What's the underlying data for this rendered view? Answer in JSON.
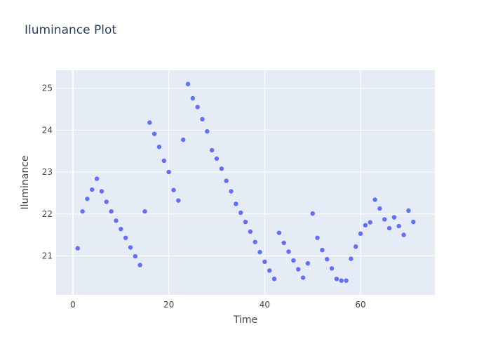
{
  "chart_data": {
    "type": "scatter",
    "title": "Iluminance Plot",
    "xlabel": "Time",
    "ylabel": "Iluminance",
    "xlim": [
      -3.5,
      75.5
    ],
    "ylim": [
      20.07,
      25.43
    ],
    "xticks": [
      0,
      20,
      40,
      60
    ],
    "yticks": [
      21,
      22,
      23,
      24,
      25
    ],
    "grid": true,
    "marker_color": "#636efa",
    "plot_background": "#e5ecf6",
    "x": [
      1,
      2,
      3,
      4,
      5,
      6,
      7,
      8,
      9,
      10,
      11,
      12,
      13,
      14,
      15,
      16,
      17,
      18,
      19,
      20,
      21,
      22,
      23,
      24,
      25,
      26,
      27,
      28,
      29,
      30,
      31,
      32,
      33,
      34,
      35,
      36,
      37,
      38,
      39,
      40,
      41,
      42,
      43,
      44,
      45,
      46,
      47,
      48,
      49,
      50,
      51,
      52,
      53,
      54,
      55,
      56,
      57,
      58,
      59,
      60,
      61,
      62,
      63,
      64,
      65,
      66,
      67,
      68,
      69,
      70,
      71
    ],
    "y": [
      21.18,
      22.06,
      22.36,
      22.58,
      22.84,
      22.54,
      22.29,
      22.06,
      21.84,
      21.64,
      21.43,
      21.2,
      20.99,
      20.78,
      22.06,
      24.18,
      23.91,
      23.6,
      23.27,
      23.0,
      22.57,
      22.32,
      23.77,
      25.1,
      24.76,
      24.55,
      24.26,
      23.97,
      23.52,
      23.32,
      23.08,
      22.79,
      22.54,
      22.24,
      22.03,
      21.81,
      21.58,
      21.33,
      21.09,
      20.86,
      20.65,
      20.45,
      21.55,
      21.31,
      21.1,
      20.89,
      20.68,
      20.48,
      20.82,
      22.01,
      21.43,
      21.14,
      20.92,
      20.7,
      20.45,
      20.41,
      20.41,
      20.93,
      21.22,
      21.53,
      21.73,
      21.8,
      22.34,
      22.13,
      21.87,
      21.66,
      21.92,
      21.71,
      21.5,
      22.08,
      21.81
    ]
  }
}
